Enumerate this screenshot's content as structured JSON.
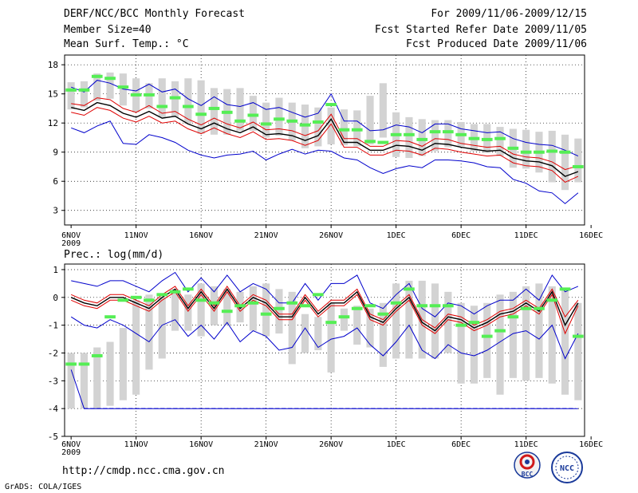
{
  "header": {
    "title": "DERF/NCC/BCC Monthly Forecast",
    "member_size": "Member Size=40",
    "variable": "Mean Surf. Temp.: °C",
    "period": "For 2009/11/06-2009/12/15",
    "refer_date": "Fcst Started Refer Date 2009/11/05",
    "produced_date": "Fcst Produced Date 2009/11/06"
  },
  "footer": {
    "url": "http://cmdp.ncc.cma.gov.cn",
    "grads": "GrADS: COLA/IGES"
  },
  "logos": {
    "bcc": "BCC",
    "ncc": "NCC"
  },
  "colors": {
    "box": "#d3d3d3",
    "observed": "#55ee55",
    "mean": "#000000",
    "spread": "#e00000",
    "extreme": "#0000cc",
    "grid": "#000000"
  },
  "chart_data": [
    {
      "type": "line",
      "title": "Mean Surf. Temp.: °C",
      "x_axis": {
        "tick_labels": [
          "6NOV",
          "11NOV",
          "16NOV",
          "21NOV",
          "26NOV",
          "1DEC",
          "6DEC",
          "11DEC",
          "16DEC"
        ],
        "year_label": "2009",
        "days": 40
      },
      "ylim": [
        1.5,
        19
      ],
      "yticks": [
        3,
        6,
        9,
        12,
        15,
        18
      ],
      "box_high": [
        16.2,
        16.3,
        17.1,
        17.2,
        17.1,
        16.6,
        16.1,
        16.6,
        16.3,
        16.6,
        16.4,
        15.6,
        15.5,
        15.6,
        14.8,
        14.1,
        14.6,
        14.1,
        13.9,
        13.6,
        13.6,
        13.4,
        13.3,
        14.8,
        16.1,
        13.1,
        12.6,
        12.4,
        12.3,
        12.3,
        12.1,
        11.9,
        11.9,
        11.6,
        11.4,
        11.3,
        11.1,
        11.2,
        10.8,
        10.4
      ],
      "box_low": [
        13.4,
        13.6,
        14.3,
        14.5,
        13.8,
        13.1,
        13.5,
        12.6,
        12.6,
        11.9,
        10.9,
        10.8,
        10.8,
        11.2,
        11.2,
        10.5,
        10.7,
        10.2,
        9.4,
        9.6,
        9.8,
        9.7,
        9.6,
        9.8,
        10.5,
        8.5,
        8.4,
        8.6,
        9.1,
        9.5,
        9.6,
        9.1,
        8.9,
        8.6,
        7.4,
        7.3,
        6.9,
        5.9,
        5.1,
        5.9
      ],
      "observed": [
        15.4,
        15.4,
        16.8,
        16.6,
        15.7,
        14.9,
        14.9,
        13.7,
        14.6,
        13.7,
        12.9,
        13.5,
        13.1,
        12.2,
        12.8,
        11.9,
        12.4,
        12.2,
        11.8,
        12.1,
        13.9,
        11.3,
        11.3,
        10.1,
        10.0,
        10.8,
        10.8,
        10.3,
        11.1,
        11.1,
        10.8,
        10.4,
        10.3,
        10.4,
        9.4,
        9.0,
        9.0,
        9.1,
        9.0,
        7.5
      ],
      "series": [
        {
          "name": "max",
          "values": [
            15.7,
            15.2,
            16.4,
            16.1,
            15.5,
            15.3,
            16.0,
            15.2,
            15.5,
            14.5,
            13.8,
            14.7,
            13.9,
            13.7,
            14.1,
            13.4,
            13.6,
            13.1,
            12.6,
            13.0,
            15.0,
            12.2,
            12.2,
            11.2,
            11.3,
            11.8,
            11.6,
            11.0,
            11.9,
            11.9,
            11.4,
            11.2,
            11.0,
            11.1,
            10.4,
            10.0,
            9.8,
            9.7,
            9.2,
            8.6
          ]
        },
        {
          "name": "mean_plus",
          "values": [
            14.0,
            13.8,
            14.6,
            14.4,
            13.5,
            13.1,
            13.8,
            13.0,
            13.2,
            12.4,
            11.8,
            12.5,
            11.9,
            11.5,
            12.1,
            11.3,
            11.4,
            11.2,
            10.7,
            11.2,
            12.9,
            10.4,
            10.4,
            9.6,
            9.6,
            10.2,
            10.1,
            9.6,
            10.4,
            10.3,
            9.9,
            9.7,
            9.5,
            9.6,
            8.8,
            8.5,
            8.4,
            8.0,
            7.2,
            7.6
          ]
        },
        {
          "name": "mean",
          "values": [
            13.6,
            13.3,
            14.1,
            13.8,
            13.0,
            12.6,
            13.2,
            12.5,
            12.7,
            11.9,
            11.4,
            12.0,
            11.4,
            11.0,
            11.6,
            10.8,
            10.9,
            10.7,
            10.2,
            10.7,
            12.4,
            10.0,
            10.0,
            9.2,
            9.2,
            9.7,
            9.6,
            9.2,
            9.9,
            9.8,
            9.5,
            9.3,
            9.1,
            9.2,
            8.4,
            8.1,
            8.0,
            7.6,
            6.5,
            7.0
          ]
        },
        {
          "name": "mean_minus",
          "values": [
            13.1,
            12.8,
            13.6,
            13.3,
            12.5,
            12.1,
            12.7,
            12.0,
            12.2,
            11.4,
            10.9,
            11.5,
            10.9,
            10.5,
            11.1,
            10.3,
            10.4,
            10.2,
            9.7,
            10.2,
            11.9,
            9.5,
            9.5,
            8.7,
            8.7,
            9.2,
            9.1,
            8.7,
            9.4,
            9.3,
            9.0,
            8.8,
            8.6,
            8.7,
            7.9,
            7.6,
            7.5,
            7.1,
            5.9,
            6.5
          ]
        },
        {
          "name": "min",
          "values": [
            11.5,
            11.0,
            11.7,
            12.2,
            9.9,
            9.8,
            10.8,
            10.5,
            10.0,
            9.2,
            8.7,
            8.4,
            8.7,
            8.8,
            9.1,
            8.2,
            8.8,
            9.3,
            8.8,
            9.2,
            9.1,
            8.4,
            8.2,
            7.4,
            6.8,
            7.3,
            7.6,
            7.4,
            8.2,
            8.2,
            8.1,
            7.9,
            7.5,
            7.4,
            6.2,
            5.8,
            5.0,
            4.8,
            3.7,
            4.8
          ]
        }
      ]
    },
    {
      "type": "line",
      "title": "Prec.: log(mm/d)",
      "x_axis": {
        "tick_labels": [
          "6NOV",
          "11NOV",
          "16NOV",
          "21NOV",
          "26NOV",
          "1DEC",
          "6DEC",
          "11DEC",
          "16DEC"
        ],
        "year_label": "2009",
        "days": 40
      },
      "ylim": [
        -5,
        1.2
      ],
      "yticks": [
        -5,
        -4,
        -3,
        -2,
        -1,
        0,
        1
      ],
      "floor_line": -4,
      "box_high": [
        -2.0,
        -2.0,
        -1.8,
        -1.6,
        -1.1,
        -0.1,
        0.1,
        0.0,
        0.3,
        0.1,
        0.5,
        0.4,
        0.3,
        0.2,
        0.4,
        0.5,
        0.3,
        0.2,
        -0.6,
        -0.7,
        -0.2,
        -0.4,
        -0.3,
        -0.4,
        -0.2,
        0.5,
        0.6,
        0.6,
        0.5,
        0.2,
        -0.2,
        -0.3,
        -0.2,
        0.1,
        0.2,
        0.4,
        0.5,
        0.4,
        0.3,
        -0.2
      ],
      "box_low": [
        -4.0,
        -4.0,
        -4.0,
        -3.9,
        -3.7,
        -3.5,
        -2.6,
        -2.2,
        -1.2,
        -1.2,
        -1.4,
        -1.0,
        -1.0,
        -0.9,
        -1.2,
        -1.4,
        -1.3,
        -2.4,
        -2.0,
        -1.9,
        -2.7,
        -1.2,
        -1.7,
        -1.8,
        -2.5,
        -2.2,
        -2.2,
        -2.2,
        -2.2,
        -2.0,
        -3.1,
        -3.1,
        -2.9,
        -3.5,
        -2.9,
        -3.0,
        -2.9,
        -3.1,
        -3.5,
        -3.7
      ],
      "observed": [
        -2.4,
        -2.4,
        -2.1,
        -0.7,
        -0.1,
        0.0,
        -0.1,
        0.1,
        0.2,
        0.3,
        -0.1,
        -0.2,
        -0.5,
        -0.3,
        -0.2,
        -0.6,
        -0.4,
        -0.2,
        -0.3,
        0.1,
        -0.9,
        -0.7,
        -0.4,
        -0.3,
        -0.6,
        -0.2,
        0.3,
        -0.3,
        -0.3,
        -0.3,
        -1.0,
        -0.9,
        -1.4,
        -1.2,
        -0.7,
        -0.4,
        -0.4,
        -0.1,
        0.3,
        -1.4
      ],
      "series": [
        {
          "name": "max",
          "values": [
            0.6,
            0.5,
            0.4,
            0.6,
            0.6,
            0.4,
            0.2,
            0.6,
            0.9,
            0.2,
            0.7,
            0.2,
            0.8,
            0.2,
            0.5,
            0.3,
            -0.2,
            -0.2,
            0.5,
            -0.1,
            0.5,
            0.5,
            0.8,
            -0.2,
            -0.4,
            0.1,
            0.5,
            -0.4,
            -0.7,
            -0.2,
            -0.3,
            -0.6,
            -0.3,
            -0.1,
            -0.1,
            0.3,
            -0.1,
            0.8,
            0.2,
            0.4
          ]
        },
        {
          "name": "mean_plus",
          "values": [
            0.1,
            -0.1,
            -0.2,
            0.1,
            0.1,
            -0.1,
            -0.3,
            0.1,
            0.4,
            -0.3,
            0.3,
            -0.3,
            0.4,
            -0.3,
            0.1,
            -0.1,
            -0.6,
            -0.6,
            0.1,
            -0.5,
            -0.1,
            -0.1,
            0.3,
            -0.6,
            -0.8,
            -0.3,
            0.1,
            -0.8,
            -1.1,
            -0.6,
            -0.7,
            -1.0,
            -0.8,
            -0.5,
            -0.4,
            -0.1,
            -0.4,
            0.3,
            -0.7,
            -0.1
          ]
        },
        {
          "name": "mean",
          "values": [
            0.0,
            -0.2,
            -0.3,
            0.0,
            0.0,
            -0.2,
            -0.4,
            0.0,
            0.3,
            -0.4,
            0.2,
            -0.4,
            0.3,
            -0.4,
            0.0,
            -0.2,
            -0.7,
            -0.7,
            0.0,
            -0.6,
            -0.2,
            -0.2,
            0.2,
            -0.7,
            -0.9,
            -0.4,
            0.0,
            -0.9,
            -1.2,
            -0.7,
            -0.8,
            -1.1,
            -0.9,
            -0.6,
            -0.5,
            -0.2,
            -0.5,
            0.2,
            -1.0,
            -0.2
          ]
        },
        {
          "name": "mean_minus",
          "values": [
            -0.1,
            -0.3,
            -0.4,
            -0.1,
            -0.1,
            -0.3,
            -0.5,
            -0.1,
            0.2,
            -0.5,
            0.1,
            -0.5,
            0.2,
            -0.5,
            -0.1,
            -0.3,
            -0.8,
            -0.8,
            -0.1,
            -0.7,
            -0.3,
            -0.3,
            0.1,
            -0.8,
            -1.0,
            -0.5,
            -0.1,
            -1.0,
            -1.3,
            -0.8,
            -0.9,
            -1.2,
            -1.0,
            -0.7,
            -0.6,
            -0.3,
            -0.6,
            0.1,
            -1.3,
            -0.3
          ]
        },
        {
          "name": "min",
          "values": [
            -0.7,
            -1.0,
            -1.1,
            -0.8,
            -1.0,
            -1.3,
            -1.6,
            -1.0,
            -0.8,
            -1.4,
            -1.0,
            -1.5,
            -0.9,
            -1.6,
            -1.2,
            -1.4,
            -1.9,
            -1.8,
            -1.1,
            -1.8,
            -1.5,
            -1.4,
            -1.1,
            -1.7,
            -2.1,
            -1.6,
            -1.0,
            -1.9,
            -2.2,
            -1.7,
            -2.0,
            -2.1,
            -1.9,
            -1.6,
            -1.3,
            -1.2,
            -1.5,
            -1.0,
            -2.2,
            -1.3
          ]
        },
        {
          "name": "lower",
          "values": [
            -2.6,
            -4.0,
            -4.0,
            -4.0,
            -4.0,
            -4.0,
            -4.0,
            -4.0,
            -4.0,
            -4.0,
            -4.0,
            -4.0,
            -4.0,
            -4.0,
            -4.0,
            -4.0,
            -4.0,
            -4.0,
            -4.0,
            -4.0,
            -4.0,
            -4.0,
            -4.0,
            -4.0,
            -4.0,
            -4.0,
            -4.0,
            -4.0,
            -4.0,
            -4.0,
            -4.0,
            -4.0,
            -4.0,
            -4.0,
            -4.0,
            -4.0,
            -4.0,
            -4.0,
            -4.0,
            -4.0
          ]
        }
      ]
    }
  ]
}
